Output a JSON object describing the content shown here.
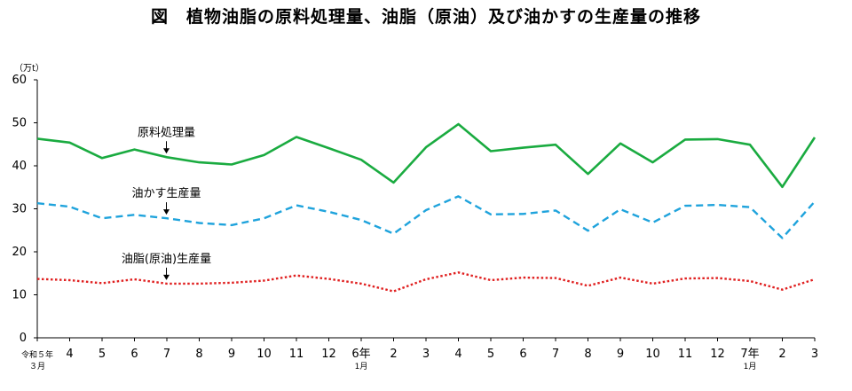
{
  "chart_data": {
    "type": "line",
    "title": "図　植物油脂の原料処理量、油脂（原油）及び油かすの生産量の推移",
    "ylabel": "（万t）",
    "xlabel": "",
    "ylim": [
      0,
      60
    ],
    "yticks": [
      "0",
      "10",
      "20",
      "30",
      "40",
      "50",
      "60"
    ],
    "grid": false,
    "categories": [
      {
        "main": "令和５年",
        "sub": "３月"
      },
      {
        "main": "4",
        "sub": ""
      },
      {
        "main": "5",
        "sub": ""
      },
      {
        "main": "6",
        "sub": ""
      },
      {
        "main": "7",
        "sub": ""
      },
      {
        "main": "8",
        "sub": ""
      },
      {
        "main": "9",
        "sub": ""
      },
      {
        "main": "10",
        "sub": ""
      },
      {
        "main": "11",
        "sub": ""
      },
      {
        "main": "12",
        "sub": ""
      },
      {
        "main": "6年",
        "sub": "1月"
      },
      {
        "main": "2",
        "sub": ""
      },
      {
        "main": "3",
        "sub": ""
      },
      {
        "main": "4",
        "sub": ""
      },
      {
        "main": "5",
        "sub": ""
      },
      {
        "main": "6",
        "sub": ""
      },
      {
        "main": "7",
        "sub": ""
      },
      {
        "main": "8",
        "sub": ""
      },
      {
        "main": "9",
        "sub": ""
      },
      {
        "main": "10",
        "sub": ""
      },
      {
        "main": "11",
        "sub": ""
      },
      {
        "main": "12",
        "sub": ""
      },
      {
        "main": "7年",
        "sub": "1月"
      },
      {
        "main": "2",
        "sub": ""
      },
      {
        "main": "3",
        "sub": ""
      }
    ],
    "series": [
      {
        "name": "原料処理量",
        "color": "#1aab40",
        "style": "solid",
        "values": [
          46.3,
          45.4,
          41.8,
          43.8,
          42.0,
          40.8,
          40.3,
          42.5,
          46.7,
          44.1,
          41.4,
          36.1,
          44.3,
          49.7,
          43.4,
          44.2,
          44.9,
          38.1,
          45.2,
          40.8,
          46.1,
          46.2,
          44.9,
          35.1,
          46.6
        ]
      },
      {
        "name": "油かす生産量",
        "color": "#1fa3dc",
        "style": "dashed",
        "values": [
          31.3,
          30.5,
          27.8,
          28.6,
          27.8,
          26.7,
          26.2,
          27.8,
          30.8,
          29.3,
          27.4,
          24.2,
          29.7,
          32.9,
          28.7,
          28.8,
          29.6,
          24.9,
          29.9,
          26.8,
          30.7,
          30.9,
          30.4,
          23.2,
          31.7
        ]
      },
      {
        "name": "油脂（原油）生産量",
        "color": "#e02020",
        "style": "dotted",
        "values": [
          13.7,
          13.4,
          12.7,
          13.6,
          12.6,
          12.6,
          12.8,
          13.3,
          14.5,
          13.7,
          12.6,
          10.8,
          13.6,
          15.2,
          13.4,
          14.0,
          13.9,
          12.1,
          14.0,
          12.6,
          13.8,
          13.9,
          13.2,
          11.2,
          13.6
        ]
      }
    ],
    "annotations": [
      {
        "text": "原料処理量",
        "series": 0,
        "at": 4
      },
      {
        "text": "油かす生産量",
        "series": 1,
        "at": 4
      },
      {
        "text": "油脂(原油)生産量",
        "series": 2,
        "at": 4
      }
    ]
  }
}
